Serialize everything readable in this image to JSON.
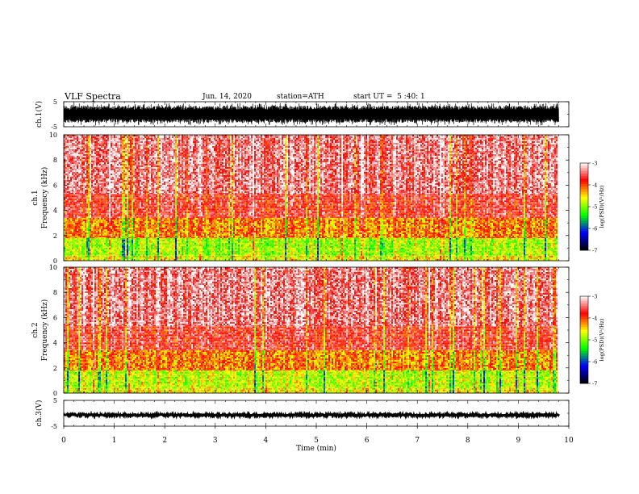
{
  "header": {
    "title": "VLF Spectra",
    "date": "Jun. 14, 2020",
    "station": "station=ATH",
    "start_time": "start UT =  5 :40: 1"
  },
  "colors": {
    "trace": "#000000",
    "axis": "#000000",
    "background": "#ffffff"
  },
  "chart_data": [
    {
      "type": "line",
      "name": "ch1-waveform",
      "ylabel": "ch.1(V)",
      "ylim": [
        -5,
        5
      ],
      "y_ticks": [
        "5",
        "-5"
      ],
      "xlim": [
        0,
        10
      ],
      "amplitude_range": [
        -4.5,
        4.5
      ],
      "x_end": 9.8
    },
    {
      "type": "heatmap",
      "name": "ch1-spectrogram",
      "ylabel": "ch.1",
      "ylabel2": "Frequency (kHz)",
      "ylim": [
        0,
        10
      ],
      "y_ticks": [
        "0",
        "2",
        "4",
        "6",
        "8",
        "10"
      ],
      "xlim": [
        0,
        10
      ],
      "x_end": 9.8,
      "colorbar": {
        "label": "log(PSD)(V²/Hz)",
        "range": [
          -7,
          -3
        ],
        "ticks": [
          "-3",
          "-4",
          "-5",
          "-6",
          "-7"
        ],
        "colormap": [
          "#000000",
          "#0000ff",
          "#00ff00",
          "#ffff00",
          "#ff0000",
          "#ffffff"
        ]
      },
      "bands": [
        {
          "f": [
            0.0,
            0.4
          ],
          "level": -4.6
        },
        {
          "f": [
            0.4,
            1.8
          ],
          "level": -4.9
        },
        {
          "f": [
            1.8,
            3.4
          ],
          "level": -4.2
        },
        {
          "f": [
            3.4,
            5.3
          ],
          "level": -3.7
        },
        {
          "f": [
            5.3,
            10.0
          ],
          "level": -3.4
        }
      ]
    },
    {
      "type": "heatmap",
      "name": "ch2-spectrogram",
      "ylabel": "ch.2",
      "ylabel2": "Frequency (kHz)",
      "ylim": [
        0,
        10
      ],
      "y_ticks": [
        "0",
        "2",
        "4",
        "6",
        "8",
        "10"
      ],
      "xlim": [
        0,
        10
      ],
      "x_end": 9.8,
      "colorbar": {
        "label": "log(PSD)(V²/Hz)",
        "range": [
          -7,
          -3
        ],
        "ticks": [
          "-3",
          "-4",
          "-5",
          "-6",
          "-7"
        ],
        "colormap": [
          "#000000",
          "#0000ff",
          "#00ff00",
          "#ffff00",
          "#ff0000",
          "#ffffff"
        ]
      },
      "bands": [
        {
          "f": [
            0.0,
            0.4
          ],
          "level": -4.6
        },
        {
          "f": [
            0.4,
            1.8
          ],
          "level": -4.8
        },
        {
          "f": [
            1.8,
            3.4
          ],
          "level": -4.2
        },
        {
          "f": [
            3.4,
            5.3
          ],
          "level": -3.7
        },
        {
          "f": [
            5.3,
            10.0
          ],
          "level": -3.4
        }
      ]
    },
    {
      "type": "line",
      "name": "ch3-waveform",
      "ylabel": "ch.3(V)",
      "ylim": [
        -5,
        5
      ],
      "y_ticks": [
        "5",
        "-5"
      ],
      "xlim": [
        0,
        10
      ],
      "amplitude_range": [
        -0.7,
        0.7
      ],
      "baseline": -0.7,
      "x_end": 9.8
    }
  ],
  "x_axis": {
    "label": "Time (min)",
    "ticks": [
      "0",
      "1",
      "2",
      "3",
      "4",
      "5",
      "6",
      "7",
      "8",
      "9",
      "10"
    ]
  }
}
